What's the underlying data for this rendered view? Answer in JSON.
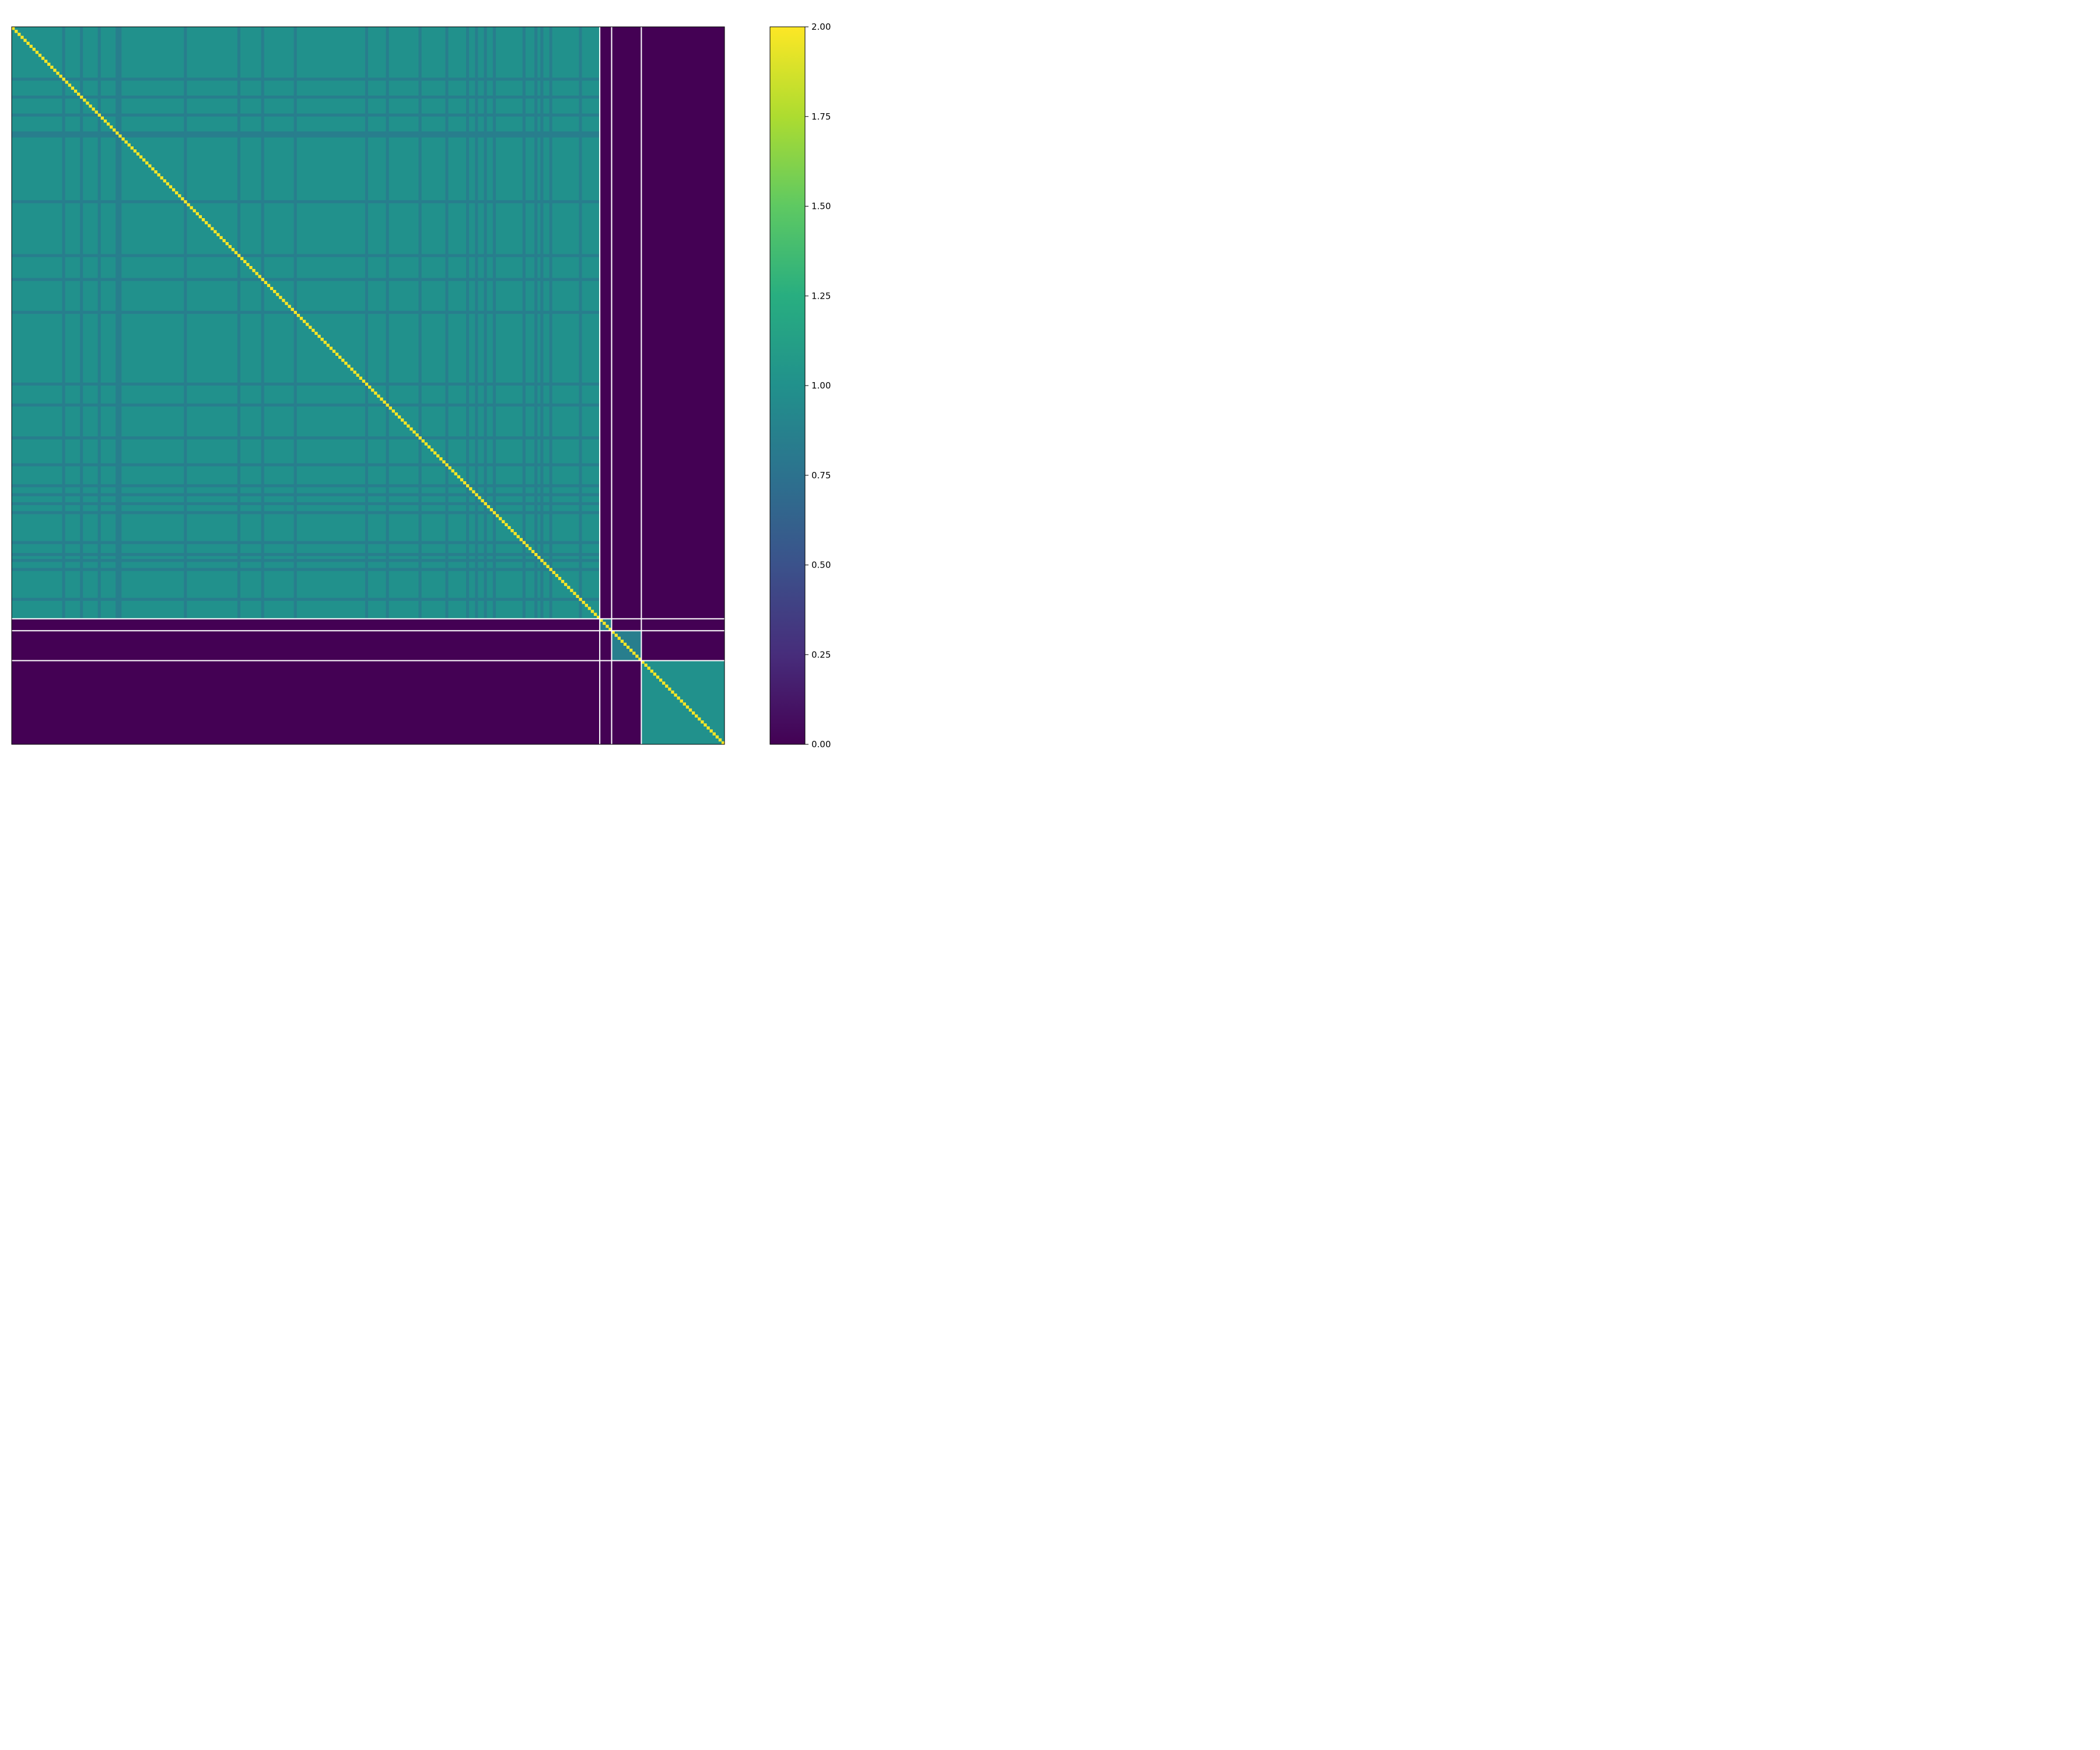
{
  "chart_data": {
    "type": "heatmap",
    "title": "",
    "colorbar": {
      "label": "",
      "range": [
        0,
        2
      ],
      "ticks": [
        0.0,
        0.25,
        0.5,
        0.75,
        1.0,
        1.25,
        1.5,
        1.75,
        2.0
      ],
      "tick_labels": [
        "0.00",
        "0.25",
        "0.50",
        "0.75",
        "1.00",
        "1.25",
        "1.50",
        "1.75",
        "2.00"
      ],
      "colormap": "viridis"
    },
    "matrix_size": 240,
    "groups": [
      {
        "start": 0,
        "size": 198,
        "block_value": 1.0,
        "stripe_value": 0.85,
        "stripe_indices": [
          17,
          23,
          29,
          35,
          36,
          58,
          76,
          84,
          95,
          119,
          126,
          137,
          146,
          153,
          156,
          159,
          162,
          172,
          176,
          178,
          181,
          191
        ]
      },
      {
        "start": 198,
        "size": 4,
        "block_value": 0.85
      },
      {
        "start": 202,
        "size": 10,
        "block_value": 0.85
      },
      {
        "start": 212,
        "size": 28,
        "block_value": 1.0
      }
    ],
    "diagonal_value": 2.0,
    "off_block_value": 0.0,
    "group_boundaries": [
      198,
      202,
      212
    ],
    "boundary_color": "#ffffff"
  }
}
